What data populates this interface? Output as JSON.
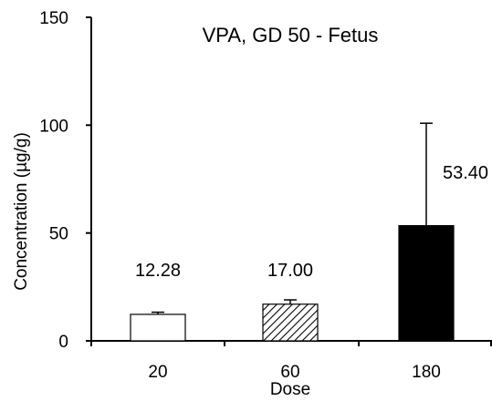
{
  "chart_data": {
    "type": "bar",
    "title": "VPA, GD 50 - Fetus",
    "xlabel": "Dose",
    "ylabel": "Concentration (µg/g)",
    "ylim": [
      0,
      150
    ],
    "yticks": [
      0,
      50,
      100,
      150
    ],
    "categories": [
      "20",
      "60",
      "180"
    ],
    "values": [
      12.28,
      17.0,
      53.4
    ],
    "value_labels": [
      "12.28",
      "17.00",
      "53.40"
    ],
    "error_upper": [
      1.0,
      2.0,
      47.5
    ],
    "bar_styles": [
      "white",
      "hatched",
      "black"
    ],
    "grid": false,
    "legend": "none"
  },
  "colors": {
    "axis": "#000000",
    "bar_outline": "#000000",
    "bar_solid": "#000000",
    "bar_empty": "#ffffff"
  }
}
